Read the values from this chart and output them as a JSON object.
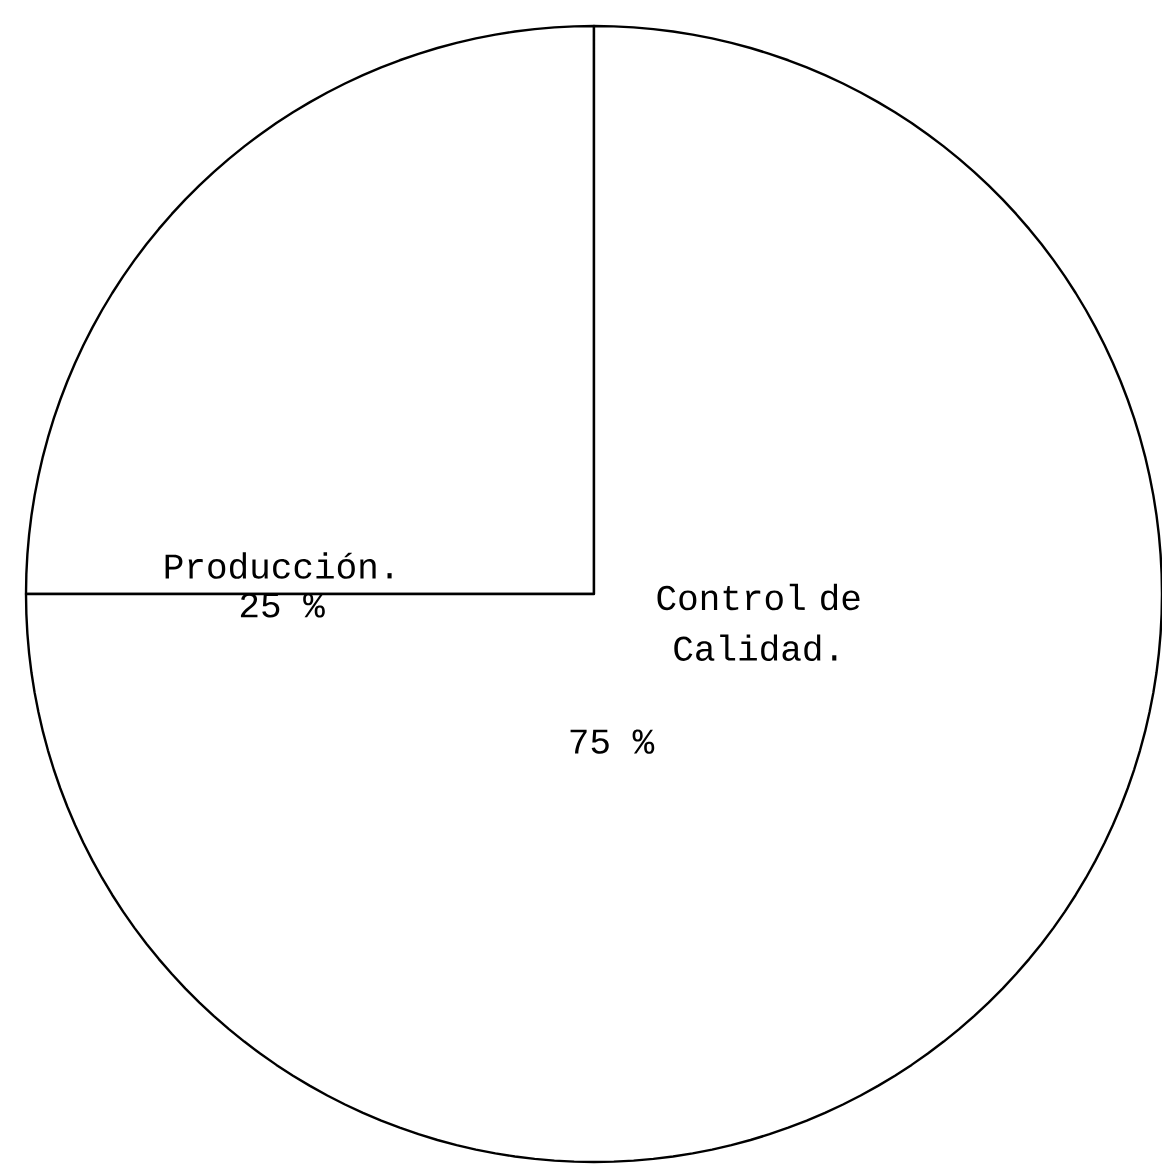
{
  "chart_data": {
    "type": "pie",
    "categories": [
      "Producción.",
      "Control de Calidad."
    ],
    "values": [
      25,
      75
    ],
    "value_labels": [
      "25 %",
      "75 %"
    ],
    "colors": [
      "#ffffff",
      "#ffffff"
    ]
  }
}
